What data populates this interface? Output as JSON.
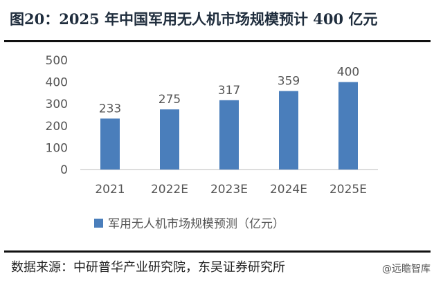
{
  "title": "图20：2025 年中国军用无人机市场规模预计 400 亿元",
  "source": "数据来源：中研普华产业研究院，东吴证券研究所",
  "watermark": "@远瞻智库",
  "chart_data": {
    "type": "bar",
    "title": "",
    "categories": [
      "2021",
      "2022E",
      "2023E",
      "2024E",
      "2025E"
    ],
    "series": [
      {
        "name": "军用无人机市场规模预测（亿元）",
        "values": [
          233,
          275,
          317,
          359,
          400
        ],
        "color": "#4a7ebb"
      }
    ],
    "ylim": [
      0,
      500
    ],
    "yticks": [
      0,
      100,
      200,
      300,
      400,
      500
    ],
    "grid": false,
    "legend": "bottom"
  }
}
